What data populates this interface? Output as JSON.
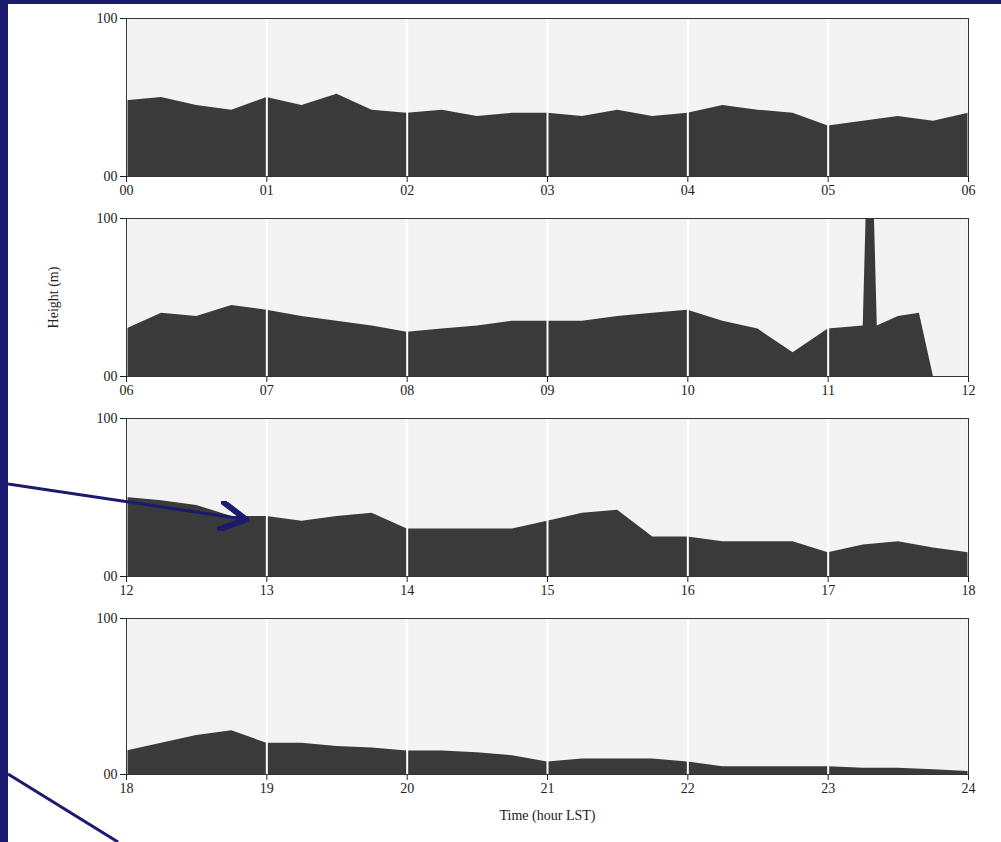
{
  "chart_data": [
    {
      "type": "area",
      "x": [
        0,
        0.25,
        0.5,
        0.75,
        1,
        1.25,
        1.5,
        1.75,
        2,
        2.25,
        2.5,
        2.75,
        3,
        3.25,
        3.5,
        3.75,
        4,
        4.25,
        4.5,
        4.75,
        5,
        5.25,
        5.5,
        5.75,
        6
      ],
      "values": [
        48,
        50,
        45,
        42,
        50,
        45,
        52,
        42,
        40,
        42,
        38,
        40,
        40,
        38,
        42,
        38,
        40,
        45,
        42,
        40,
        32,
        35,
        38,
        35,
        40
      ],
      "color": "#3a3a3a",
      "xlim": [
        0,
        6
      ],
      "xticks": [
        {
          "value": 0,
          "label": "00"
        },
        {
          "value": 1,
          "label": "01"
        },
        {
          "value": 2,
          "label": "02"
        },
        {
          "value": 3,
          "label": "03"
        },
        {
          "value": 4,
          "label": "04"
        },
        {
          "value": 5,
          "label": "05"
        },
        {
          "value": 6,
          "label": "06"
        }
      ],
      "ylim": [
        0,
        100
      ],
      "yticks": [
        {
          "value": 0,
          "label": "00"
        },
        100
      ],
      "grid": true
    },
    {
      "type": "area",
      "ylabel": "Height (m)",
      "x": [
        6,
        6.25,
        6.5,
        6.75,
        7,
        7.25,
        7.5,
        7.75,
        8,
        8.25,
        8.5,
        8.75,
        9,
        9.25,
        9.5,
        9.75,
        10,
        10.25,
        10.5,
        10.75,
        11,
        11.25,
        11.27,
        11.33,
        11.35,
        11.5,
        11.65,
        11.75,
        12
      ],
      "values": [
        30,
        40,
        38,
        45,
        42,
        38,
        35,
        32,
        28,
        30,
        32,
        35,
        35,
        35,
        38,
        40,
        42,
        35,
        30,
        15,
        30,
        32,
        100,
        100,
        32,
        38,
        40,
        0,
        0
      ],
      "color": "#3a3a3a",
      "xlim": [
        6,
        12
      ],
      "xticks": [
        {
          "value": 6,
          "label": "06"
        },
        {
          "value": 7,
          "label": "07"
        },
        {
          "value": 8,
          "label": "08"
        },
        {
          "value": 9,
          "label": "09"
        },
        10,
        11,
        12
      ],
      "ylim": [
        0,
        100
      ],
      "yticks": [
        {
          "value": 0,
          "label": "00"
        },
        100
      ],
      "grid": true
    },
    {
      "type": "area",
      "x": [
        12,
        12.25,
        12.5,
        12.75,
        13,
        13.25,
        13.5,
        13.75,
        14,
        14.25,
        14.5,
        14.75,
        15,
        15.25,
        15.5,
        15.75,
        16,
        16.25,
        16.5,
        16.75,
        17,
        17.25,
        17.5,
        17.75,
        18
      ],
      "values": [
        50,
        48,
        45,
        38,
        38,
        35,
        38,
        40,
        30,
        30,
        30,
        30,
        35,
        40,
        42,
        25,
        25,
        22,
        22,
        22,
        15,
        20,
        22,
        18,
        15
      ],
      "color": "#3a3a3a",
      "xlim": [
        12,
        18
      ],
      "xticks": [
        12,
        13,
        14,
        15,
        16,
        17,
        18
      ],
      "ylim": [
        0,
        100
      ],
      "yticks": [
        {
          "value": 0,
          "label": "00"
        },
        100
      ],
      "grid": true
    },
    {
      "type": "area",
      "xlabel": "Time (hour LST)",
      "x": [
        18,
        18.25,
        18.5,
        18.75,
        19,
        19.25,
        19.5,
        19.75,
        20,
        20.25,
        20.5,
        20.75,
        21,
        21.25,
        21.5,
        21.75,
        22,
        22.25,
        22.5,
        22.75,
        23,
        23.25,
        23.5,
        23.75,
        24
      ],
      "values": [
        15,
        20,
        25,
        28,
        20,
        20,
        18,
        17,
        15,
        15,
        14,
        12,
        8,
        10,
        10,
        10,
        8,
        5,
        5,
        5,
        5,
        4,
        4,
        3,
        2
      ],
      "color": "#3a3a3a",
      "xlim": [
        18,
        24
      ],
      "xticks": [
        18,
        19,
        20,
        21,
        22,
        23,
        24
      ],
      "ylim": [
        0,
        100
      ],
      "yticks": [
        {
          "value": 0,
          "label": "00"
        },
        100
      ],
      "grid": true
    }
  ]
}
